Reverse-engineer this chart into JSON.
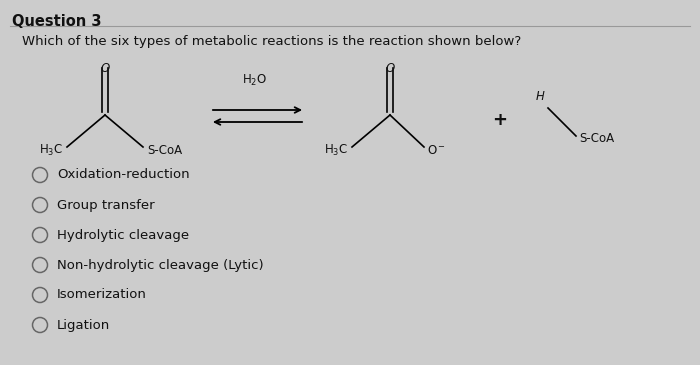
{
  "title": "Question 3",
  "question_text": "Which of the six types of metabolic reactions is the reaction shown below?",
  "options": [
    "Oxidation-reduction",
    "Group transfer",
    "Hydrolytic cleavage",
    "Non-hydrolytic cleavage (Lytic)",
    "Isomerization",
    "Ligation"
  ],
  "bg_color": "#cccccc",
  "text_color": "#111111",
  "title_fontsize": 10.5,
  "question_fontsize": 9.5,
  "option_fontsize": 9.5,
  "chem_fontsize": 8.5
}
